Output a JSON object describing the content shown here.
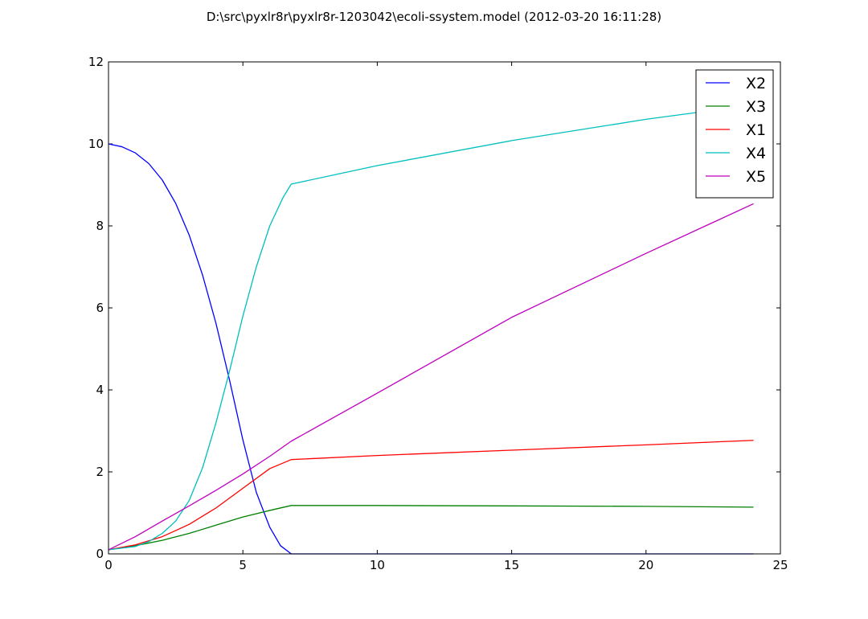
{
  "title": "D:\\src\\pyxlr8r\\pyxlr8r-1203042\\ecoli-ssystem.model (2012-03-20 16:11:28)",
  "chart_data": {
    "type": "line",
    "title": "D:\\src\\pyxlr8r\\pyxlr8r-1203042\\ecoli-ssystem.model (2012-03-20 16:11:28)",
    "xlabel": "",
    "ylabel": "",
    "xlim": [
      0,
      25
    ],
    "ylim": [
      0,
      12
    ],
    "xticks": [
      0,
      5,
      10,
      15,
      20,
      25
    ],
    "yticks": [
      0,
      2,
      4,
      6,
      8,
      10,
      12
    ],
    "grid": false,
    "legend": "top-right",
    "series": [
      {
        "name": "X2",
        "color": "#0000ff",
        "points": [
          [
            0,
            10.0
          ],
          [
            0.5,
            9.93
          ],
          [
            1,
            9.78
          ],
          [
            1.5,
            9.52
          ],
          [
            2,
            9.12
          ],
          [
            2.5,
            8.55
          ],
          [
            3,
            7.78
          ],
          [
            3.5,
            6.8
          ],
          [
            4,
            5.62
          ],
          [
            4.5,
            4.25
          ],
          [
            5,
            2.78
          ],
          [
            5.5,
            1.5
          ],
          [
            6,
            0.65
          ],
          [
            6.4,
            0.2
          ],
          [
            6.8,
            0.0
          ],
          [
            10,
            0.0
          ],
          [
            15,
            0.0
          ],
          [
            20,
            0.0
          ],
          [
            24,
            0.0
          ]
        ]
      },
      {
        "name": "X3",
        "color": "#008000",
        "points": [
          [
            0,
            0.1
          ],
          [
            1,
            0.2
          ],
          [
            2,
            0.33
          ],
          [
            3,
            0.5
          ],
          [
            4,
            0.7
          ],
          [
            5,
            0.9
          ],
          [
            6,
            1.06
          ],
          [
            6.8,
            1.18
          ],
          [
            10,
            1.18
          ],
          [
            15,
            1.17
          ],
          [
            20,
            1.16
          ],
          [
            24,
            1.14
          ]
        ]
      },
      {
        "name": "X1",
        "color": "#ff0000",
        "points": [
          [
            0,
            0.1
          ],
          [
            1,
            0.22
          ],
          [
            2,
            0.42
          ],
          [
            3,
            0.72
          ],
          [
            4,
            1.12
          ],
          [
            5,
            1.6
          ],
          [
            6,
            2.08
          ],
          [
            6.8,
            2.3
          ],
          [
            10,
            2.4
          ],
          [
            15,
            2.53
          ],
          [
            20,
            2.66
          ],
          [
            24,
            2.77
          ]
        ]
      },
      {
        "name": "X4",
        "color": "#00bfbf",
        "points": [
          [
            0,
            0.1
          ],
          [
            1,
            0.18
          ],
          [
            1.5,
            0.3
          ],
          [
            2,
            0.5
          ],
          [
            2.5,
            0.8
          ],
          [
            3,
            1.3
          ],
          [
            3.5,
            2.1
          ],
          [
            4,
            3.2
          ],
          [
            4.5,
            4.45
          ],
          [
            5,
            5.8
          ],
          [
            5.5,
            7.0
          ],
          [
            6,
            8.0
          ],
          [
            6.5,
            8.7
          ],
          [
            6.8,
            9.02
          ],
          [
            10,
            9.47
          ],
          [
            15,
            10.08
          ],
          [
            20,
            10.6
          ],
          [
            24,
            10.95
          ]
        ]
      },
      {
        "name": "X5",
        "color": "#bf00bf",
        "points": [
          [
            0,
            0.1
          ],
          [
            1,
            0.42
          ],
          [
            2,
            0.8
          ],
          [
            3,
            1.17
          ],
          [
            4,
            1.55
          ],
          [
            5,
            1.95
          ],
          [
            6,
            2.38
          ],
          [
            6.8,
            2.75
          ],
          [
            10,
            3.92
          ],
          [
            15,
            5.77
          ],
          [
            20,
            7.33
          ],
          [
            24,
            8.54
          ]
        ]
      }
    ]
  }
}
